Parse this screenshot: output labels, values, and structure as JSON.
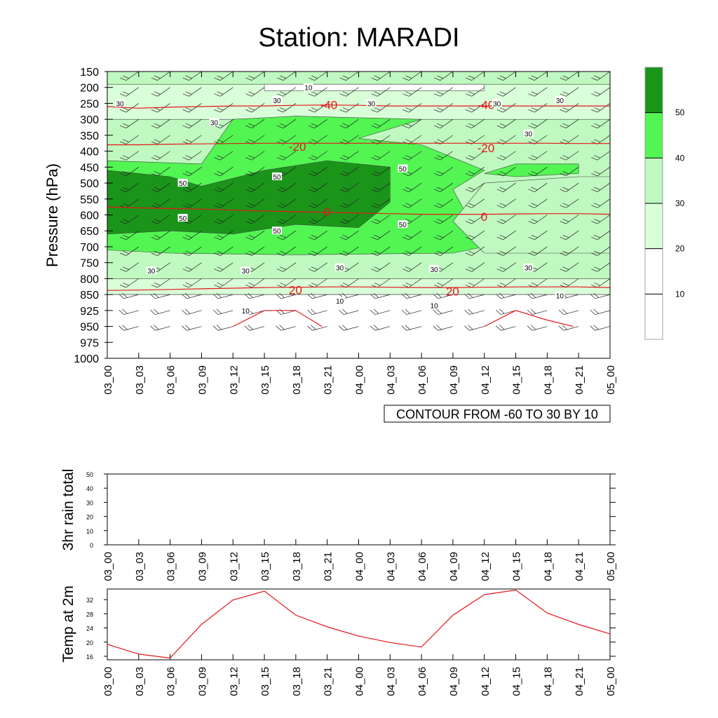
{
  "title": "Station: MARADI",
  "time_labels": [
    "03_00",
    "03_03",
    "03_06",
    "03_09",
    "03_12",
    "03_15",
    "03_18",
    "03_21",
    "04_00",
    "04_03",
    "04_06",
    "04_09",
    "04_12",
    "04_15",
    "04_18",
    "04_21",
    "05_00"
  ],
  "contour_note": "CONTOUR FROM -60 TO 30 BY 10",
  "colors": {
    "wind_lt10": "#ffffff",
    "wind_10_20": "#ffffff",
    "wind_20_30": "#d9ffd9",
    "wind_30_40": "#bff9bf",
    "wind_40_50": "#52f552",
    "wind_gt50": "#1a951a",
    "temperature_contour": "#e8141b",
    "temp2m_line": "#e8141b"
  },
  "chart_data": [
    {
      "type": "heatmap",
      "name": "cross-section",
      "ylabel": "Pressure (hPa)",
      "y_levels": [
        150,
        200,
        250,
        300,
        350,
        400,
        450,
        500,
        550,
        600,
        650,
        700,
        750,
        800,
        850,
        925,
        950,
        975,
        1000
      ],
      "ylim": [
        1000,
        150
      ],
      "colorbar": {
        "boundaries": [
          10,
          20,
          30,
          40,
          50
        ],
        "labels": [
          "10",
          "20",
          "30",
          "40",
          "50"
        ]
      },
      "wind_speed_contour_labels": [
        {
          "value": 10,
          "x": "03_18",
          "p": 200
        },
        {
          "value": 30,
          "x": "03_00",
          "p": 250
        },
        {
          "value": 30,
          "x": "03_15",
          "p": 240
        },
        {
          "value": 30,
          "x": "04_00",
          "p": 250
        },
        {
          "value": 30,
          "x": "04_12",
          "p": 250
        },
        {
          "value": 30,
          "x": "04_18",
          "p": 240
        },
        {
          "value": 30,
          "x": "03_09",
          "p": 310
        },
        {
          "value": 30,
          "x": "04_15",
          "p": 345
        },
        {
          "value": 50,
          "x": "04_03",
          "p": 455
        },
        {
          "value": 50,
          "x": "03_15",
          "p": 480
        },
        {
          "value": 50,
          "x": "03_06",
          "p": 500
        },
        {
          "value": 50,
          "x": "03_06",
          "p": 610
        },
        {
          "value": 50,
          "x": "03_15",
          "p": 650
        },
        {
          "value": 50,
          "x": "04_03",
          "p": 630
        },
        {
          "value": 30,
          "x": "03_03",
          "p": 775
        },
        {
          "value": 30,
          "x": "03_12",
          "p": 775
        },
        {
          "value": 30,
          "x": "03_21",
          "p": 765
        },
        {
          "value": 30,
          "x": "04_06",
          "p": 770
        },
        {
          "value": 30,
          "x": "04_15",
          "p": 765
        },
        {
          "value": 10,
          "x": "03_21",
          "p": 880
        },
        {
          "value": 10,
          "x": "04_06",
          "p": 900
        },
        {
          "value": 10,
          "x": "04_18",
          "p": 855
        },
        {
          "value": 10,
          "x": "03_12",
          "p": 925
        }
      ],
      "temperature_contours": [
        {
          "value": -40,
          "label": "-40",
          "y": [
            260,
            265,
            262,
            260,
            258,
            258,
            256,
            255,
            256,
            258,
            258,
            258,
            258,
            258,
            258,
            258,
            258
          ]
        },
        {
          "value": -20,
          "label": "-20",
          "y": [
            380,
            380,
            378,
            377,
            376,
            375,
            375,
            375,
            375,
            375,
            375,
            375,
            375,
            375,
            375,
            376,
            376
          ]
        },
        {
          "value": 0,
          "label": "0",
          "y": [
            575,
            578,
            580,
            582,
            585,
            588,
            590,
            592,
            594,
            596,
            598,
            598,
            598,
            597,
            596,
            596,
            598
          ]
        },
        {
          "value": 20,
          "label": "20",
          "y": [
            837,
            836,
            834,
            832,
            830,
            828,
            827,
            826,
            826,
            827,
            828,
            828,
            827,
            826,
            826,
            826,
            828
          ]
        }
      ],
      "temperature_contours_labels": [
        {
          "text": "-40",
          "x": "03_21",
          "p": 255
        },
        {
          "text": "-40",
          "x": "04_12",
          "p": 255
        },
        {
          "text": "-20",
          "x": "03_18",
          "p": 385
        },
        {
          "text": "-20",
          "x": "04_12",
          "p": 390
        },
        {
          "text": "0",
          "x": "03_21",
          "p": 590
        },
        {
          "text": "0",
          "x": "04_12",
          "p": 605
        },
        {
          "text": "20",
          "x": "03_18",
          "p": 835
        },
        {
          "text": "20",
          "x": "04_09",
          "p": 840
        }
      ]
    },
    {
      "type": "line",
      "name": "3hr-rain",
      "ylabel": "3hr rain total",
      "ylim": [
        0,
        50
      ],
      "yticks": [
        0,
        10,
        20,
        30,
        40,
        50
      ],
      "x": [
        "03_00",
        "03_03",
        "03_06",
        "03_09",
        "03_12",
        "03_15",
        "03_18",
        "03_21",
        "04_00",
        "04_03",
        "04_06",
        "04_09",
        "04_12",
        "04_15",
        "04_18",
        "04_21",
        "05_00"
      ],
      "values": [
        0,
        0,
        0,
        0,
        0,
        0,
        0,
        0,
        0,
        0,
        0,
        0,
        0,
        0,
        0,
        0,
        0
      ]
    },
    {
      "type": "line",
      "name": "temp-2m",
      "ylabel": "Temp at 2m",
      "ylim": [
        15,
        35
      ],
      "yticks": [
        16,
        20,
        24,
        28,
        32
      ],
      "x": [
        "03_00",
        "03_03",
        "03_06",
        "03_09",
        "03_12",
        "03_15",
        "03_18",
        "03_21",
        "04_00",
        "04_03",
        "04_06",
        "04_09",
        "04_12",
        "04_15",
        "04_18",
        "04_21",
        "05_00"
      ],
      "values": [
        19.4,
        16.6,
        15.5,
        25.0,
        31.9,
        34.4,
        27.6,
        24.3,
        21.7,
        19.9,
        18.6,
        27.6,
        33.4,
        34.7,
        28.2,
        25.0,
        22.3
      ]
    }
  ]
}
